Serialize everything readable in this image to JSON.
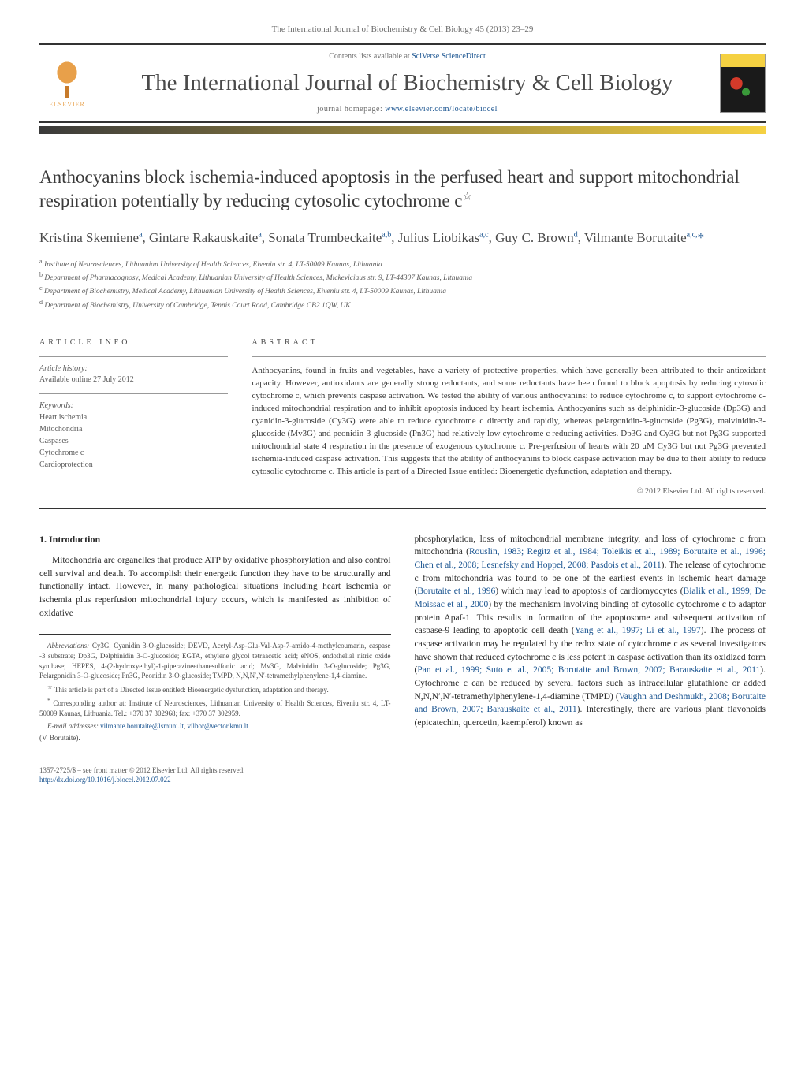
{
  "journal_ref": "The International Journal of Biochemistry & Cell Biology 45 (2013) 23–29",
  "contents_prefix": "Contents lists available at ",
  "contents_link": "SciVerse ScienceDirect",
  "journal_title": "The International Journal of Biochemistry & Cell Biology",
  "homepage_prefix": "journal homepage: ",
  "homepage_link": "www.elsevier.com/locate/biocel",
  "elsevier": "ELSEVIER",
  "article_title": "Anthocyanins block ischemia-induced apoptosis in the perfused heart and support mitochondrial respiration potentially by reducing cytosolic cytochrome c",
  "star": "☆",
  "authors_html": "Kristina Skemiene<sup>a</sup>, Gintare Rakauskaite<sup>a</sup>, Sonata Trumbeckaite<sup>a,b</sup>, Julius Liobikas<sup>a,c</sup>, Guy C. Brown<sup>d</sup>, Vilmante Borutaite<sup>a,c,</sup><a>*</a>",
  "affiliations": {
    "a": "Institute of Neurosciences, Lithuanian University of Health Sciences, Eiveniu str. 4, LT-50009 Kaunas, Lithuania",
    "b": "Department of Pharmacognosy, Medical Academy, Lithuanian University of Health Sciences, Mickeviciaus str. 9, LT-44307 Kaunas, Lithuania",
    "c": "Department of Biochemistry, Medical Academy, Lithuanian University of Health Sciences, Eiveniu str. 4, LT-50009 Kaunas, Lithuania",
    "d": "Department of Biochemistry, University of Cambridge, Tennis Court Road, Cambridge CB2 1QW, UK"
  },
  "info_heading": "ARTICLE INFO",
  "abstract_heading": "ABSTRACT",
  "history_label": "Article history:",
  "history_value": "Available online 27 July 2012",
  "keywords_label": "Keywords:",
  "keywords": [
    "Heart ischemia",
    "Mitochondria",
    "Caspases",
    "Cytochrome c",
    "Cardioprotection"
  ],
  "abstract": "Anthocyanins, found in fruits and vegetables, have a variety of protective properties, which have generally been attributed to their antioxidant capacity. However, antioxidants are generally strong reductants, and some reductants have been found to block apoptosis by reducing cytosolic cytochrome c, which prevents caspase activation. We tested the ability of various anthocyanins: to reduce cytochrome c, to support cytochrome c-induced mitochondrial respiration and to inhibit apoptosis induced by heart ischemia. Anthocyanins such as delphinidin-3-glucoside (Dp3G) and cyanidin-3-glucoside (Cy3G) were able to reduce cytochrome c directly and rapidly, whereas pelargonidin-3-glucoside (Pg3G), malvinidin-3-glucoside (Mv3G) and peonidin-3-glucoside (Pn3G) had relatively low cytochrome c reducing activities. Dp3G and Cy3G but not Pg3G supported mitochondrial state 4 respiration in the presence of exogenous cytochrome c. Pre-perfusion of hearts with 20 μM Cy3G but not Pg3G prevented ischemia-induced caspase activation. This suggests that the ability of anthocyanins to block caspase activation may be due to their ability to reduce cytosolic cytochrome c. This article is part of a Directed Issue entitled: Bioenergetic dysfunction, adaptation and therapy.",
  "copyright": "© 2012 Elsevier Ltd. All rights reserved.",
  "section_1": "1. Introduction",
  "intro_p1": "Mitochondria are organelles that produce ATP by oxidative phosphorylation and also control cell survival and death. To accomplish their energetic function they have to be structurally and functionally intact. However, in many pathological situations including heart ischemia or ischemia plus reperfusion mitochondrial injury occurs, which is manifested as inhibition of oxidative",
  "intro_p2_a": "phosphorylation, loss of mitochondrial membrane integrity, and loss of cytochrome c from mitochondria (",
  "intro_cite1": "Rouslin, 1983; Regitz et al., 1984; Toleikis et al., 1989; Borutaite et al., 1996; Chen et al., 2008; Lesnefsky and Hoppel, 2008; Pasdois et al., 2011",
  "intro_p2_b": "). The release of cytochrome c from mitochondria was found to be one of the earliest events in ischemic heart damage (",
  "intro_cite2": "Borutaite et al., 1996",
  "intro_p2_c": ") which may lead to apoptosis of cardiomyocytes (",
  "intro_cite3": "Bialik et al., 1999; De Moissac et al., 2000",
  "intro_p2_d": ") by the mechanism involving binding of cytosolic cytochrome c to adaptor protein Apaf-1. This results in formation of the apoptosome and subsequent activation of caspase-9 leading to apoptotic cell death (",
  "intro_cite4": "Yang et al., 1997; Li et al., 1997",
  "intro_p2_e": "). The process of caspase activation may be regulated by the redox state of cytochrome c as several investigators have shown that reduced cytochrome c is less potent in caspase activation than its oxidized form (",
  "intro_cite5": "Pan et al., 1999; Suto et al., 2005; Borutaite and Brown, 2007; Barauskaite et al., 2011",
  "intro_p2_f": "). Cytochrome c can be reduced by several factors such as intracellular glutathione or added N,N,N′,N′-tetramethylphenylene-1,4-diamine (TMPD) (",
  "intro_cite6": "Vaughn and Deshmukh, 2008; Borutaite and Brown, 2007; Barauskaite et al., 2011",
  "intro_p2_g": "). Interestingly, there are various plant flavonoids (epicatechin, quercetin, kaempferol) known as",
  "abbrev_label": "Abbreviations:",
  "abbrev_text": " Cy3G, Cyanidin 3-O-glucoside; DEVD, Acetyl-Asp-Glu-Val-Asp-7-amido-4-methylcoumarin, caspase -3 substrate; Dp3G, Delphinidin 3-O-glucoside; EGTA, ethylene glycol tetraacetic acid; eNOS, endothelial nitric oxide synthase; HEPES, 4-(2-hydroxyethyl)-1-piperazineethanesulfonic acid; Mv3G, Malvinidin 3-O-glucoside; Pg3G, Pelargonidin 3-O-glucoside; Pn3G, Peonidin 3-O-glucoside; TMPD, N,N,N′,N′-tetramethylphenylene-1,4-diamine.",
  "directed_note": "This article is part of a Directed Issue entitled: Bioenergetic dysfunction, adaptation and therapy.",
  "corr_label": "Corresponding author at: ",
  "corr_text": "Institute of Neurosciences, Lithuanian University of Health Sciences, Eiveniu str. 4, LT-50009 Kaunas, Lithuania. Tel.: +370 37 302968; fax: +370 37 302959.",
  "email_label": "E-mail addresses: ",
  "email1": "vilmante.borutaite@lsmuni.lt",
  "email_sep": ", ",
  "email2": "vilbor@vector.kmu.lt",
  "email_author": "(V. Borutaite).",
  "footer_left": "1357-2725/$ – see front matter © 2012 Elsevier Ltd. All rights reserved.",
  "doi": "http://dx.doi.org/10.1016/j.biocel.2012.07.022"
}
